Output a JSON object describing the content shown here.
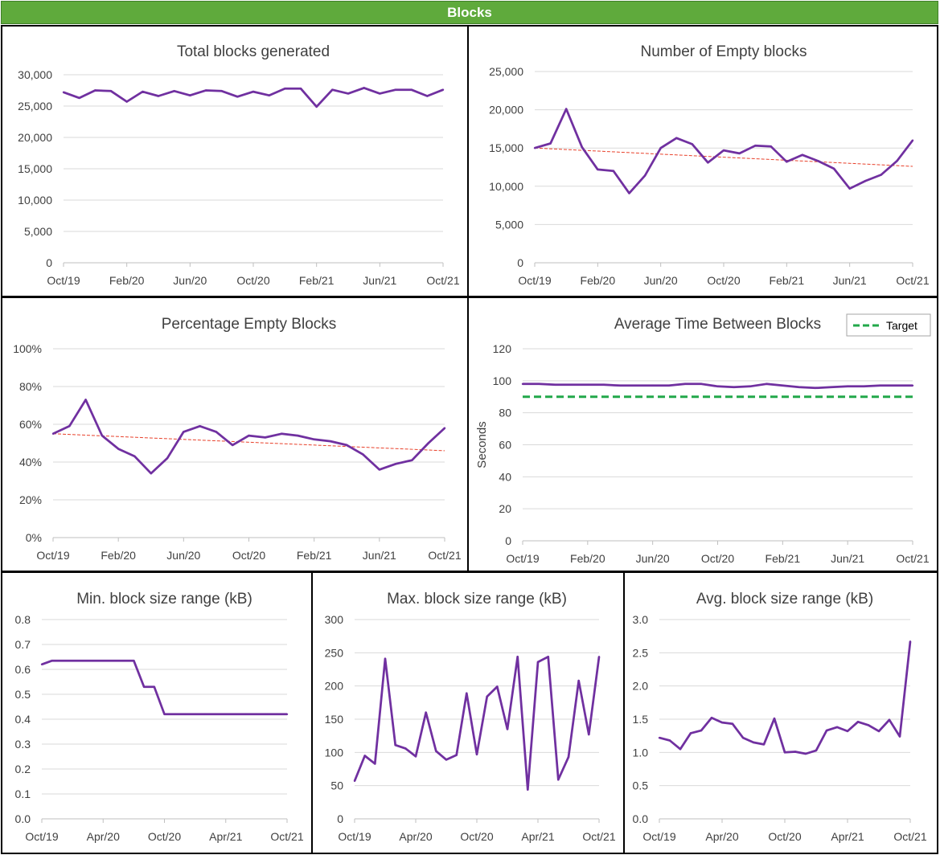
{
  "header": {
    "title": "Blocks"
  },
  "colors": {
    "series": "#7030a0",
    "trend": "#e8402a",
    "target": "#22a84a",
    "grid": "#d9d9d9",
    "header": "#5faa3c"
  },
  "chart_data": [
    {
      "id": "total",
      "type": "line",
      "title": "Total blocks generated",
      "x_labels": [
        "Oct/19",
        "Feb/20",
        "Jun/20",
        "Oct/20",
        "Feb/21",
        "Jun/21",
        "Oct/21"
      ],
      "y_ticks": [
        "0",
        "5,000",
        "10,000",
        "15,000",
        "20,000",
        "25,000",
        "30,000"
      ],
      "ylim": [
        0,
        30000
      ],
      "grid": true,
      "series": [
        {
          "values": [
            27200,
            26300,
            27500,
            27400,
            25700,
            27300,
            26600,
            27400,
            26700,
            27500,
            27400,
            26500,
            27300,
            26700,
            27800,
            27800,
            24900,
            27600,
            27000,
            27900,
            27000,
            27600,
            27600,
            26600,
            27600
          ]
        }
      ]
    },
    {
      "id": "empty",
      "type": "line",
      "title": "Number of Empty blocks",
      "x_labels": [
        "Oct/19",
        "Feb/20",
        "Jun/20",
        "Oct/20",
        "Feb/21",
        "Jun/21",
        "Oct/21"
      ],
      "y_ticks": [
        "0",
        "5,000",
        "10,000",
        "15,000",
        "20,000",
        "25,000"
      ],
      "ylim": [
        0,
        25000
      ],
      "grid": true,
      "trendline": [
        15000,
        12600
      ],
      "series": [
        {
          "values": [
            15000,
            15600,
            20100,
            15100,
            12200,
            12000,
            9100,
            11400,
            15000,
            16300,
            15500,
            13100,
            14700,
            14300,
            15300,
            15200,
            13200,
            14100,
            13300,
            12300,
            9700,
            10700,
            11500,
            13300,
            16000
          ]
        }
      ]
    },
    {
      "id": "pct",
      "type": "line",
      "title": "Percentage Empty Blocks",
      "x_labels": [
        "Oct/19",
        "Feb/20",
        "Jun/20",
        "Oct/20",
        "Feb/21",
        "Jun/21",
        "Oct/21"
      ],
      "y_ticks": [
        "0%",
        "20%",
        "40%",
        "60%",
        "80%",
        "100%"
      ],
      "ylim": [
        0,
        100
      ],
      "grid": true,
      "trendline": [
        55,
        46
      ],
      "series": [
        {
          "values": [
            55,
            59,
            73,
            54,
            47,
            43,
            34,
            42,
            56,
            59,
            56,
            49,
            54,
            53,
            55,
            54,
            52,
            51,
            49,
            44,
            36,
            39,
            41,
            50,
            58
          ]
        }
      ]
    },
    {
      "id": "avgtime",
      "type": "line",
      "title": "Average Time Between Blocks",
      "ylabel": "Seconds",
      "x_labels": [
        "Oct/19",
        "Feb/20",
        "Jun/20",
        "Oct/20",
        "Feb/21",
        "Jun/21",
        "Oct/21"
      ],
      "y_ticks": [
        "0",
        "20",
        "40",
        "60",
        "80",
        "100",
        "120"
      ],
      "ylim": [
        0,
        120
      ],
      "grid": true,
      "legend": {
        "position": "top-right",
        "entries": [
          "Target"
        ]
      },
      "target": 90,
      "series": [
        {
          "values": [
            98,
            98,
            97.5,
            97.5,
            97.5,
            97.5,
            97,
            97,
            97,
            97,
            98,
            98,
            96.5,
            96,
            96.5,
            98,
            97,
            96,
            95.5,
            96,
            96.5,
            96.5,
            97,
            97,
            97
          ]
        }
      ]
    },
    {
      "id": "minsize",
      "type": "line",
      "title": "Min. block size range (kB)",
      "x_labels": [
        "Oct/19",
        "Apr/20",
        "Oct/20",
        "Apr/21",
        "Oct/21"
      ],
      "y_ticks": [
        "0.0",
        "0.1",
        "0.2",
        "0.3",
        "0.4",
        "0.5",
        "0.6",
        "0.7",
        "0.8"
      ],
      "ylim": [
        0,
        0.8
      ],
      "grid": true,
      "series": [
        {
          "values": [
            0.62,
            0.635,
            0.635,
            0.635,
            0.635,
            0.635,
            0.635,
            0.635,
            0.635,
            0.635,
            0.53,
            0.53,
            0.42,
            0.42,
            0.42,
            0.42,
            0.42,
            0.42,
            0.42,
            0.42,
            0.42,
            0.42,
            0.42,
            0.42,
            0.42
          ]
        }
      ]
    },
    {
      "id": "maxsize",
      "type": "line",
      "title": "Max. block size range (kB)",
      "x_labels": [
        "Oct/19",
        "Apr/20",
        "Oct/20",
        "Apr/21",
        "Oct/21"
      ],
      "y_ticks": [
        "0",
        "50",
        "100",
        "150",
        "200",
        "250",
        "300"
      ],
      "ylim": [
        0,
        300
      ],
      "grid": true,
      "series": [
        {
          "values": [
            57,
            95,
            83,
            241,
            111,
            106,
            94,
            160,
            102,
            89,
            96,
            189,
            97,
            184,
            199,
            135,
            244,
            44,
            236,
            244,
            59,
            93,
            208,
            127,
            244
          ]
        }
      ]
    },
    {
      "id": "avgsize",
      "type": "line",
      "title": "Avg. block size range (kB)",
      "x_labels": [
        "Oct/19",
        "Apr/20",
        "Oct/20",
        "Apr/21",
        "Oct/21"
      ],
      "y_ticks": [
        "0.0",
        "0.5",
        "1.0",
        "1.5",
        "2.0",
        "2.5",
        "3.0"
      ],
      "ylim": [
        0,
        3
      ],
      "grid": true,
      "series": [
        {
          "values": [
            1.22,
            1.18,
            1.05,
            1.29,
            1.33,
            1.52,
            1.45,
            1.43,
            1.22,
            1.15,
            1.12,
            1.51,
            1.0,
            1.01,
            0.98,
            1.03,
            1.33,
            1.38,
            1.32,
            1.46,
            1.41,
            1.32,
            1.49,
            1.24,
            2.67
          ]
        }
      ]
    }
  ]
}
